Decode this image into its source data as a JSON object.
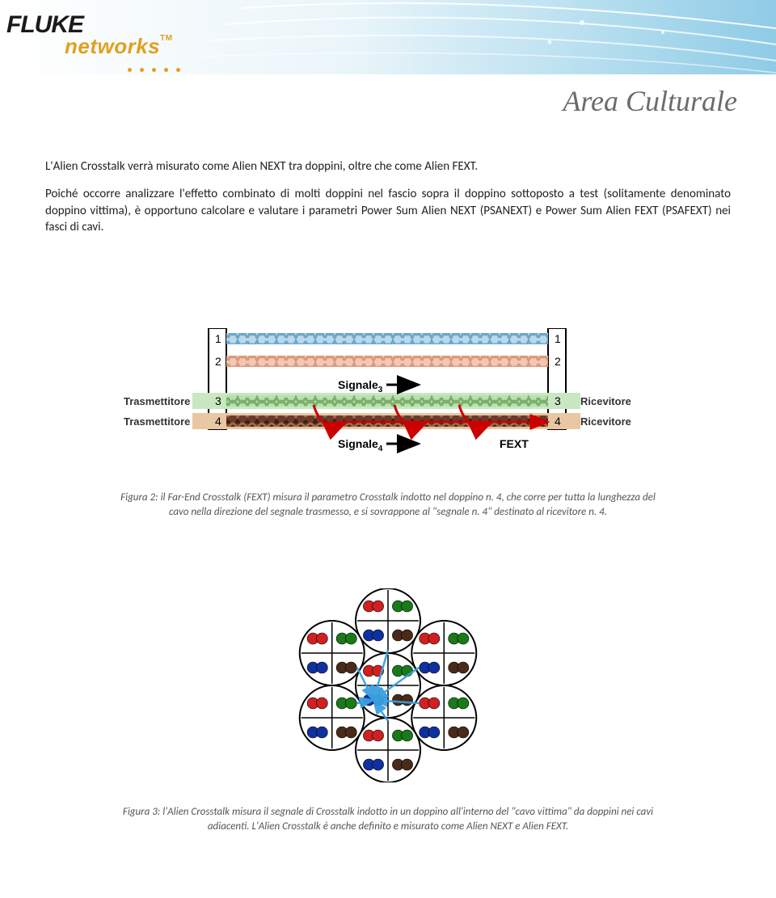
{
  "header": {
    "logo_top": "FLUKE",
    "logo_bottom": "networks",
    "tm": "TM",
    "page_label": "Area Culturale"
  },
  "text": {
    "p1": "L'Alien Crosstalk verrà misurato come Alien NEXT tra doppini, oltre che come Alien FEXT.",
    "p2": "Poiché occorre analizzare l'effetto combinato di molti doppini nel fascio sopra il doppino sottoposto a test (solitamente denominato doppino vittima), è opportuno calcolare e valutare i parametri Power Sum Alien NEXT (PSANEXT) e Power Sum Alien FEXT (PSAFEXT) nei fasci di cavi."
  },
  "fig2": {
    "type": "diagram",
    "pairs": [
      {
        "idx": "1",
        "fill": "#b9d8ea",
        "stroke": "#6da7c7"
      },
      {
        "idx": "2",
        "fill": "#f4c6b3",
        "stroke": "#d89a7d"
      },
      {
        "idx": "3",
        "fill": "#b9e0b0",
        "stroke": "#7bb06b",
        "band": true,
        "band_color": "#c9e7c1"
      },
      {
        "idx": "4",
        "fill": "#6b3a2a",
        "stroke": "#3d1e14",
        "band": true,
        "band_color": "#e8c7a2"
      }
    ],
    "tx_label": "Trasmettitore",
    "rx_label": "Ricevitore",
    "signal3": "Signale",
    "signal3_sub": "3",
    "signal4": "Signale",
    "signal4_sub": "4",
    "fext_label": "FEXT",
    "fext_color": "#cc0000",
    "arrow_color": "#cc0000",
    "connector_fill": "#ffffff",
    "connector_stroke": "#000000",
    "caption": "Figura 2: il Far-End Crosstalk (FEXT) misura il parametro Crosstalk indotto nel doppino n. 4, che corre per tutta la lunghezza del cavo nella direzione del segnale trasmesso, e si sovrappone al \"segnale n. 4\" destinato al ricevitore n. 4."
  },
  "fig3": {
    "type": "diagram",
    "cable_radius": 40,
    "wire_radius": 7,
    "ring_stroke": "#000000",
    "center_cable_color": "#4a4a4a",
    "wire_colors": [
      "#d02020",
      "#1a7a1a",
      "#1030a0",
      "#4a2a18"
    ],
    "alien_arrow_color": "#3aa0e0",
    "caption": "Figura 3: l'Alien Crosstalk misura il segnale di Crosstalk indotto in un doppino all'interno del \"cavo vittima\" da doppini nei cavi adiacenti. L'Alien Crosstalk è anche definito e misurato come Alien NEXT e Alien FEXT."
  },
  "styling": {
    "page_bg": "#ffffff",
    "body_font_size": 15,
    "caption_font_size": 13,
    "caption_color": "#555555",
    "logo_accent": "#e0a020",
    "header_streak_colors": [
      "#d4edf5",
      "#a8daf0",
      "#7fc5e3"
    ]
  }
}
